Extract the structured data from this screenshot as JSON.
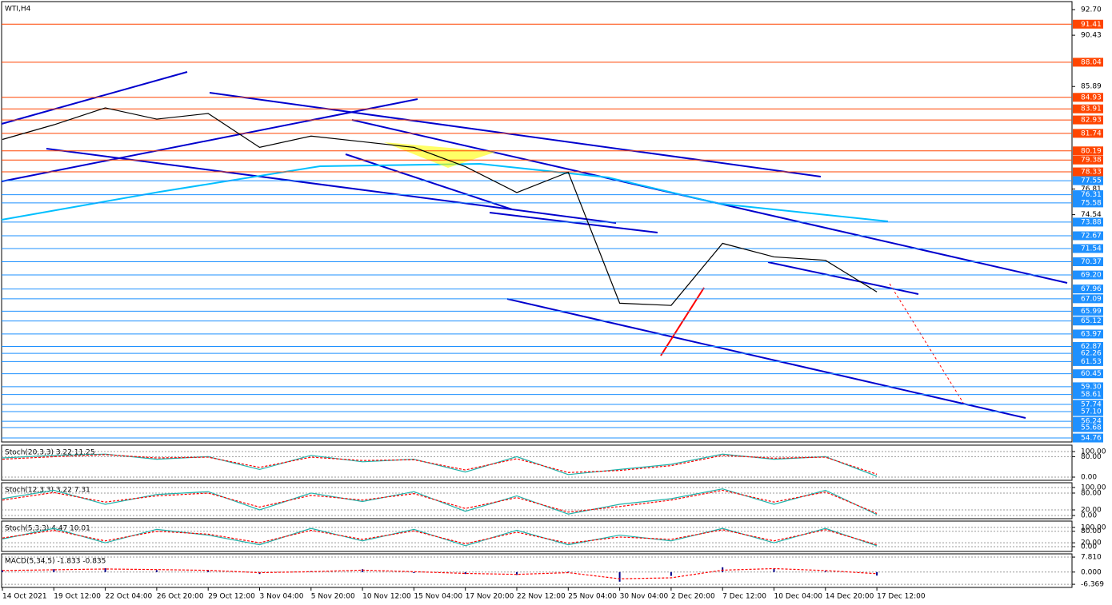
{
  "chart_data": [
    {
      "type": "line",
      "title": "WTI,H4",
      "categories": [
        "14 Oct 2021",
        "19 Oct 12:00",
        "22 Oct 04:00",
        "26 Oct 20:00",
        "29 Oct 12:00",
        "3 Nov 04:00",
        "5 Nov 20:00",
        "10 Nov 12:00",
        "15 Nov 04:00",
        "17 Nov 20:00",
        "22 Nov 12:00",
        "25 Nov 04:00",
        "30 Nov 04:00",
        "2 Dec 20:00",
        "7 Dec 12:00",
        "10 Dec 04:00",
        "14 Dec 20:00",
        "17 Dec 12:00"
      ],
      "values": [
        81.2,
        82.5,
        84.0,
        83.0,
        83.5,
        80.5,
        81.5,
        81.0,
        80.5,
        78.8,
        76.5,
        78.3,
        66.7,
        66.5,
        72.0,
        70.8,
        70.5,
        67.7
      ],
      "color": "#000000",
      "ylim": [
        54.41,
        93.41
      ],
      "yticks": [
        {
          "value": 92.7,
          "label": "92.70"
        },
        90.43,
        85.89,
        76.81,
        74.54
      ],
      "levels": [
        {
          "color": "#ff4500",
          "values": [
            91.41,
            88.04,
            84.93,
            83.91,
            82.93,
            81.74,
            80.19,
            79.38,
            78.33
          ]
        },
        {
          "color": "#1e90ff",
          "values": [
            77.55,
            76.31,
            75.58,
            73.88,
            72.67,
            71.54,
            70.37,
            {
              "value": 69.2,
              "label": "69.20"
            },
            67.96,
            67.09,
            65.99,
            65.12,
            63.97,
            62.87,
            62.26,
            61.53,
            60.45,
            {
              "value": 59.3,
              "label": "59.30"
            },
            58.61,
            57.74,
            {
              "value": 57.1,
              "label": "57.10"
            },
            56.24,
            55.68,
            54.76
          ]
        }
      ]
    },
    {
      "type": "stochastic",
      "title": "Stoch(20,3,3) 3.22 11.25",
      "ylim": [
        -12.5,
        125
      ],
      "yticks": [
        {
          "value": 100,
          "label": "100.00"
        },
        {
          "value": 80,
          "label": "80.00"
        },
        {
          "value": 0,
          "label": "0.00"
        }
      ],
      "series": [
        {
          "color": "#20b2aa",
          "values": [
            75,
            85,
            90,
            70,
            80,
            30,
            85,
            60,
            70,
            20,
            80,
            10,
            30,
            50,
            90,
            70,
            80,
            3.22
          ]
        },
        {
          "color": "#ff0000",
          "values": [
            70,
            80,
            88,
            75,
            78,
            38,
            78,
            65,
            68,
            28,
            72,
            18,
            26,
            45,
            85,
            74,
            78,
            11.25
          ]
        }
      ]
    },
    {
      "type": "stochastic",
      "title": "Stoch(12,3,3) 3.22 7.31",
      "ylim": [
        -11.4,
        117
      ],
      "yticks": [
        {
          "value": 100,
          "label": "100.00"
        },
        {
          "value": 80,
          "label": "80.00"
        },
        {
          "value": 20,
          "label": "20.00"
        },
        {
          "value": 0,
          "label": "0.00"
        }
      ],
      "series": [
        {
          "color": "#20b2aa",
          "values": [
            60,
            90,
            40,
            75,
            85,
            20,
            80,
            50,
            85,
            15,
            70,
            5,
            40,
            60,
            95,
            40,
            90,
            3.22
          ]
        },
        {
          "color": "#ff0000",
          "values": [
            55,
            82,
            48,
            70,
            80,
            30,
            72,
            55,
            78,
            25,
            64,
            12,
            32,
            55,
            90,
            48,
            84,
            7.31
          ]
        }
      ]
    },
    {
      "type": "stochastic",
      "title": "Stoch(5,3,3) 4.47 10.01",
      "ylim": [
        -25,
        133
      ],
      "yticks": [
        {
          "value": 100,
          "label": "100.00"
        },
        {
          "value": 80,
          "label": "80.00"
        },
        {
          "value": 20,
          "label": "20.00"
        },
        {
          "value": 0,
          "label": "0.00"
        }
      ],
      "series": [
        {
          "color": "#20b2aa",
          "values": [
            40,
            95,
            20,
            90,
            60,
            10,
            95,
            30,
            90,
            5,
            85,
            10,
            60,
            30,
            95,
            20,
            95,
            4.47
          ]
        },
        {
          "color": "#ff0000",
          "values": [
            45,
            85,
            30,
            80,
            65,
            20,
            85,
            38,
            82,
            15,
            75,
            18,
            50,
            38,
            88,
            30,
            88,
            10.01
          ]
        }
      ]
    },
    {
      "type": "macd",
      "title": "MACD(5,34,5) -1.833 -0.835",
      "ylim": [
        -8,
        9.5
      ],
      "yticks": [
        {
          "value": 7.81,
          "label": "7.810"
        },
        {
          "value": 0,
          "label": "0.000"
        },
        -6.369
      ],
      "histogram": {
        "color": "#00008b",
        "values": [
          1,
          1.5,
          2,
          1,
          0.8,
          -1,
          0.5,
          1.5,
          -0.5,
          -1,
          -1.5,
          0.3,
          -5,
          -2,
          2.5,
          2,
          0.5,
          -1.833
        ]
      },
      "signal": {
        "color": "#ff0000",
        "values": [
          0.8,
          1.2,
          1.6,
          1.3,
          0.9,
          -0.3,
          0.2,
          1,
          0.2,
          -0.7,
          -1.2,
          -0.3,
          -3.5,
          -3,
          1,
          1.8,
          0.8,
          -0.835
        ]
      }
    }
  ]
}
